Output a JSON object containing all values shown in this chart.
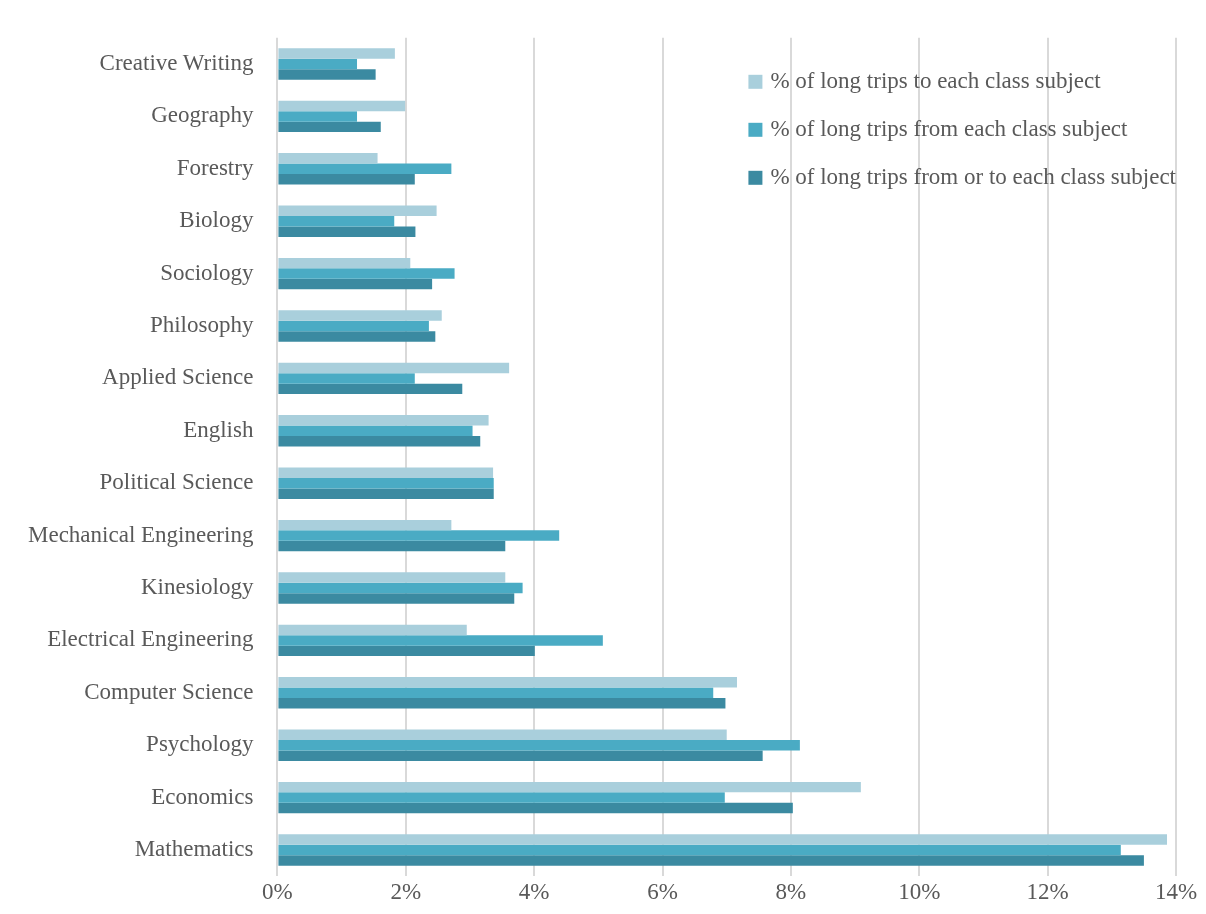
{
  "chart_data": {
    "type": "bar",
    "orientation": "horizontal",
    "categories": [
      "Creative Writing",
      "Geography",
      "Forestry",
      "Biology",
      "Sociology",
      "Philosophy",
      "Applied Science",
      "English",
      "Political Science",
      "Mechanical Engineering",
      "Kinesiology",
      "Electrical Engineering",
      "Computer Science",
      "Psychology",
      "Economics",
      "Mathematics"
    ],
    "series": [
      {
        "name": "% of long trips to each class subject",
        "color": "#a9cfdc",
        "values": [
          1.83,
          1.99,
          1.56,
          2.48,
          2.07,
          2.56,
          3.61,
          3.29,
          3.36,
          2.71,
          3.55,
          2.95,
          7.16,
          7.0,
          9.09,
          13.86
        ]
      },
      {
        "name": "% of long trips from each class subject",
        "color": "#4aabc4",
        "values": [
          1.24,
          1.24,
          2.71,
          1.82,
          2.76,
          2.36,
          2.14,
          3.04,
          3.37,
          4.39,
          3.82,
          5.07,
          6.79,
          8.14,
          6.97,
          13.14
        ]
      },
      {
        "name": "% of long trips from or to each class subject",
        "color": "#3b8aa1",
        "values": [
          1.53,
          1.61,
          2.14,
          2.15,
          2.41,
          2.46,
          2.88,
          3.16,
          3.37,
          3.55,
          3.69,
          4.01,
          6.98,
          7.56,
          8.03,
          13.5
        ]
      }
    ],
    "xlim": [
      0,
      14
    ],
    "xticks": [
      {
        "value": 0,
        "label": "0%"
      },
      {
        "value": 2,
        "label": "2%"
      },
      {
        "value": 4,
        "label": "4%"
      },
      {
        "value": 6,
        "label": "6%"
      },
      {
        "value": 8,
        "label": "8%"
      },
      {
        "value": 10,
        "label": "10%"
      },
      {
        "value": 12,
        "label": "12%"
      },
      {
        "value": 14,
        "label": "14%"
      }
    ],
    "grid": "x",
    "legend": "top right"
  }
}
